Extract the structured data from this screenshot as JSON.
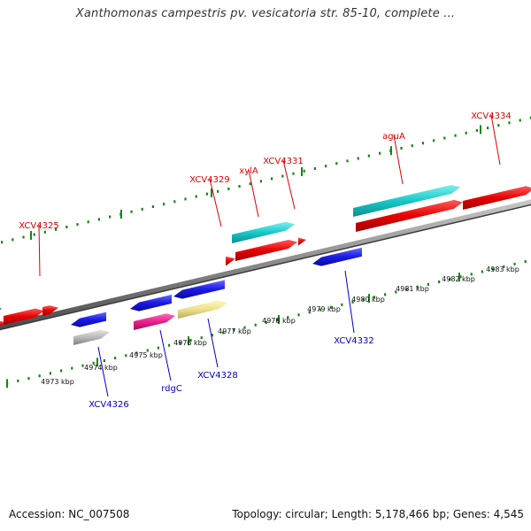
{
  "title": "Xanthomonas campestris pv. vesicatoria str. 85-10, complete ...",
  "footer": {
    "accession": "Accession: NC_007508",
    "summary": "Topology: circular; Length: 5,178,466 bp; Genes: 4,545"
  },
  "colors": {
    "forward_label": "#dd0000",
    "reverse_label": "#0000cc",
    "backbone": "#888888",
    "tick": "#118811",
    "red": "#e60000",
    "cyan": "#18c8c8",
    "blue": "#1a1ae6",
    "gray": "#b8b8b8",
    "magenta": "#e8208c",
    "khaki": "#eee08c"
  },
  "ticks": {
    "forward_labels": [],
    "reverse_labels": [
      "4973 kbp",
      "4974 kbp",
      "4975 kbp",
      "4976 kbp",
      "4977 kbp",
      "4978 kbp",
      "4979 kbp",
      "4980 kbp",
      "4981 kbp",
      "4982 kbp",
      "4983 kbp"
    ]
  },
  "genes_forward": [
    {
      "label": "XCV4325",
      "color": "red"
    },
    {
      "label": "XCV4329",
      "color": "red"
    },
    {
      "label": "xylA",
      "color": "cyan"
    },
    {
      "label": "XCV4331",
      "color": "red"
    },
    {
      "label": "aguA",
      "color": "cyan"
    },
    {
      "label": "XCV4334",
      "color": "red"
    }
  ],
  "genes_reverse": [
    {
      "label": "XCV4326",
      "color": "gray"
    },
    {
      "label": "rdgC",
      "color": "magenta"
    },
    {
      "label": "XCV4328",
      "color": "khaki"
    },
    {
      "label": "XCV4332",
      "color": "blue"
    }
  ]
}
